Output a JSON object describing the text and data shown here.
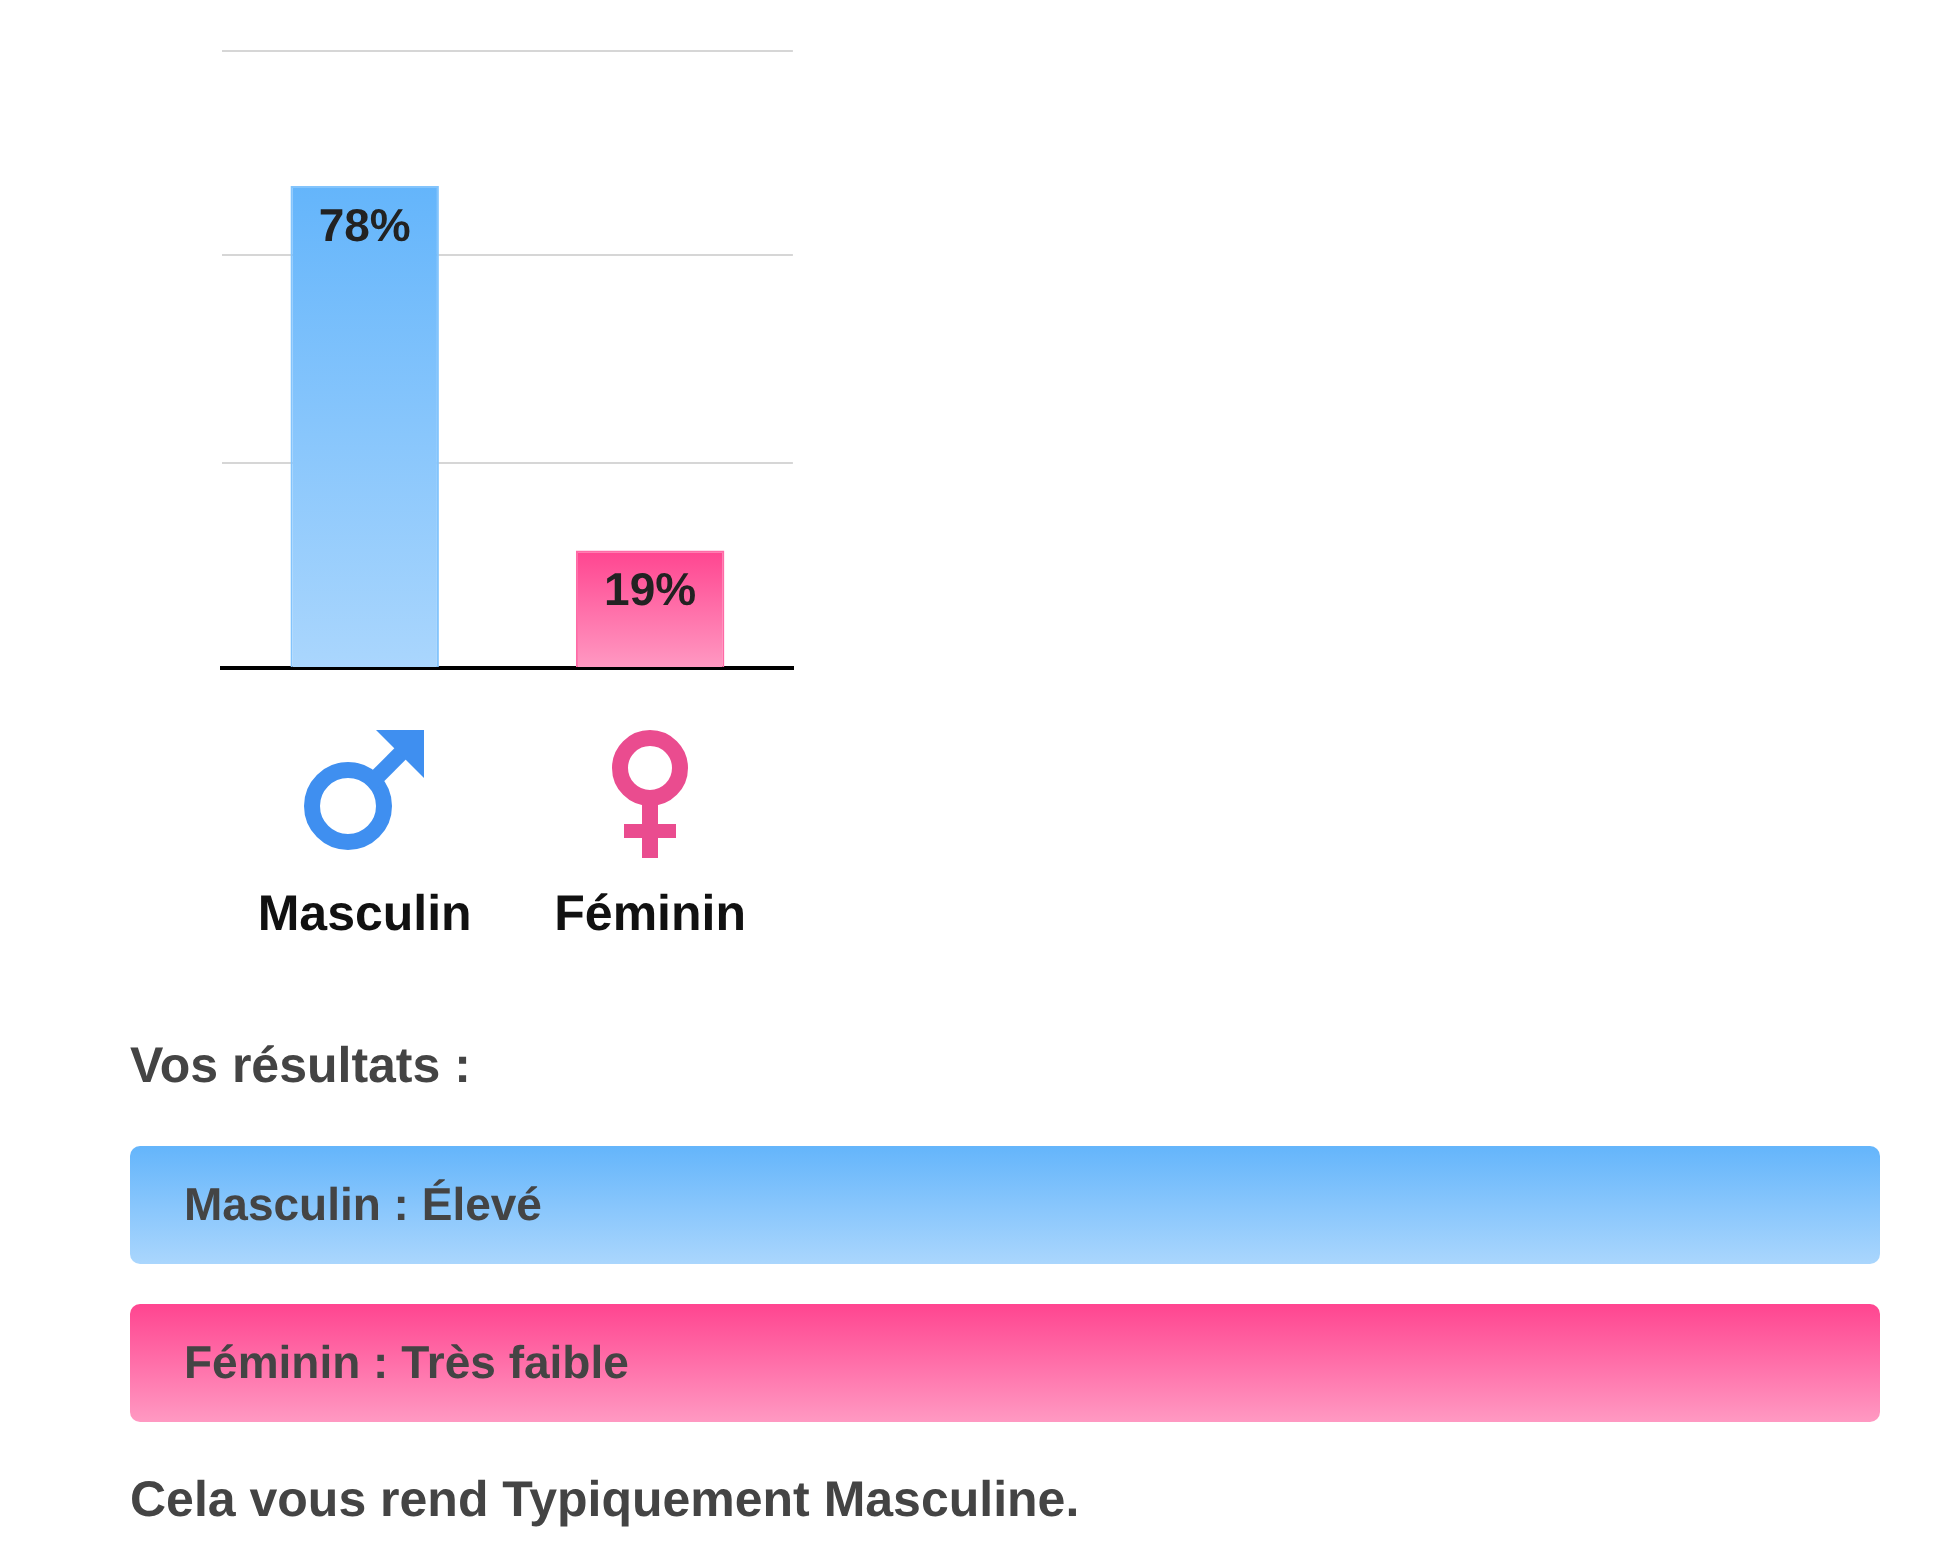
{
  "chart_data": {
    "type": "bar",
    "categories": [
      "Masculin",
      "Féminin"
    ],
    "values": [
      78,
      19
    ],
    "colors": [
      "#64b5fb",
      "#ff4590"
    ],
    "value_labels": [
      "78%",
      "19%"
    ],
    "ylim": [
      0,
      100
    ],
    "yticks": [
      {
        "value": 0,
        "label": null
      },
      {
        "value": 33.3,
        "label": null
      },
      {
        "value": 66.7,
        "label": null
      },
      {
        "value": 100,
        "label": null
      }
    ],
    "grid": "y",
    "tick_labels": "x",
    "annotations": [
      "Vos résultats :",
      "Masculin : Élevé",
      "Féminin : Très faible",
      "Cela vous rend Typiquement Masculine."
    ]
  }
}
